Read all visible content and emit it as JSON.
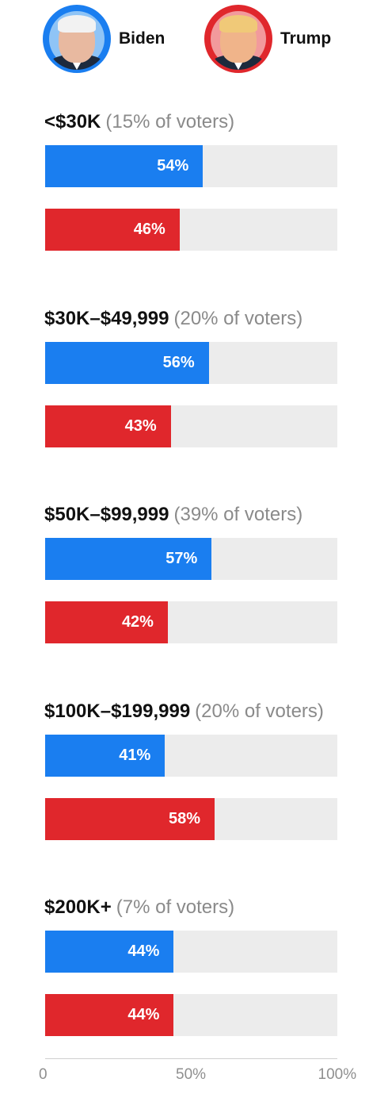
{
  "legend": {
    "biden_name": "Biden",
    "trump_name": "Trump",
    "biden_avatar_ring": "#1a7ef0",
    "trump_avatar_ring": "#e0272c"
  },
  "colors": {
    "biden": "#1a7ef0",
    "trump": "#e0272c",
    "track": "#ececec",
    "muted_text": "#8a8a8a"
  },
  "chart_data": {
    "type": "bar",
    "orientation": "horizontal",
    "groups": [
      {
        "category": "<$30K",
        "share": "(15% of voters)",
        "biden": 54,
        "trump": 46,
        "biden_label": "54%",
        "trump_label": "46%"
      },
      {
        "category": "$30K–$49,999",
        "share": "(20% of voters)",
        "biden": 56,
        "trump": 43,
        "biden_label": "56%",
        "trump_label": "43%"
      },
      {
        "category": "$50K–$99,999",
        "share": "(39% of voters)",
        "biden": 57,
        "trump": 42,
        "biden_label": "57%",
        "trump_label": "42%"
      },
      {
        "category": "$100K–$199,999",
        "share": "(20% of voters)",
        "biden": 41,
        "trump": 58,
        "biden_label": "41%",
        "trump_label": "58%"
      },
      {
        "category": "$200K+",
        "share": "(7% of voters)",
        "biden": 44,
        "trump": 44,
        "biden_label": "44%",
        "trump_label": "44%"
      }
    ],
    "series": [
      {
        "name": "Biden",
        "color": "#1a7ef0",
        "values": [
          54,
          56,
          57,
          41,
          44
        ]
      },
      {
        "name": "Trump",
        "color": "#e0272c",
        "values": [
          46,
          43,
          42,
          58,
          44
        ]
      }
    ],
    "xlim": [
      0,
      100
    ],
    "x_ticks": [
      "0",
      "50%",
      "100%"
    ],
    "grid": false
  }
}
